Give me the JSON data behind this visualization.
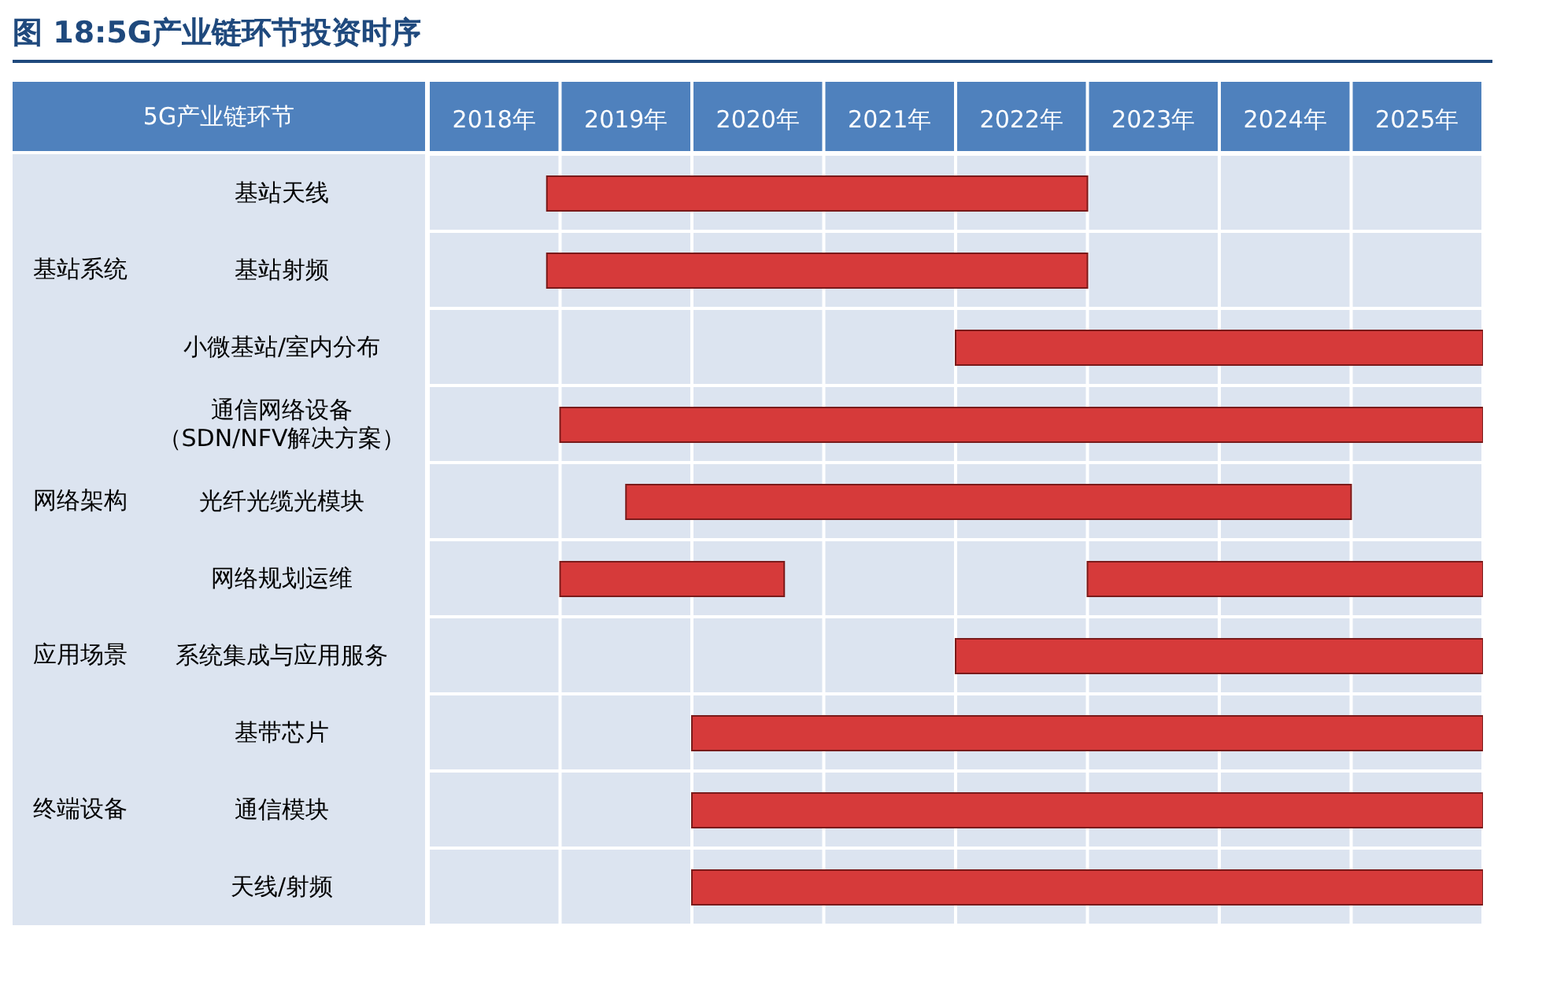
{
  "chart_data": {
    "type": "bar",
    "orientation": "horizontal",
    "title": "图 18:5G产业链环节投资时序",
    "ylabel": "5G产业链环节",
    "categories": [
      "基站天线",
      "基站射频",
      "小微基站/室内分布",
      "通信网络设备（SDN/NFV解决方案）",
      "光纤光缆光模块",
      "网络规划运维",
      "系统集成与应用服务",
      "基带芯片",
      "通信模块",
      "天线/射频"
    ],
    "series": [
      {
        "color": "#d63a3a",
        "base": [
          2018.9,
          2018.9,
          2022,
          2019,
          2019.5,
          2019,
          2022,
          2020,
          2020,
          2020
        ],
        "values": [
          4.1,
          4.1,
          4,
          7,
          5.5,
          1.7,
          4,
          6,
          6,
          6
        ]
      },
      {
        "color": "#d63a3a",
        "base": [
          null,
          null,
          null,
          null,
          null,
          2023,
          null,
          null,
          null,
          null
        ],
        "values": [
          null,
          null,
          null,
          null,
          null,
          3,
          null,
          null,
          null,
          null
        ]
      }
    ],
    "xlim": [
      2018,
      2026
    ],
    "xticks": [
      {
        "value": 2018,
        "label": null
      },
      {
        "value": 2018.5,
        "label": "2018年"
      },
      {
        "value": 2019,
        "label": null
      },
      {
        "value": 2019.5,
        "label": "2019年"
      },
      {
        "value": 2020,
        "label": null
      },
      {
        "value": 2020.5,
        "label": "2020年"
      },
      {
        "value": 2021,
        "label": null
      },
      {
        "value": 2021.5,
        "label": "2021年"
      },
      {
        "value": 2022,
        "label": null
      },
      {
        "value": 2022.5,
        "label": "2022年"
      },
      {
        "value": 2023,
        "label": null
      },
      {
        "value": 2023.5,
        "label": "2023年"
      },
      {
        "value": 2024,
        "label": null
      },
      {
        "value": 2024.5,
        "label": "2024年"
      },
      {
        "value": 2025,
        "label": null
      },
      {
        "value": 2025.5,
        "label": "2025年"
      },
      {
        "value": 2026,
        "label": null
      }
    ],
    "annotations": [
      "基站系统",
      "网络架构",
      "应用场景",
      "终端设备"
    ],
    "grid": true,
    "legend": false
  }
}
